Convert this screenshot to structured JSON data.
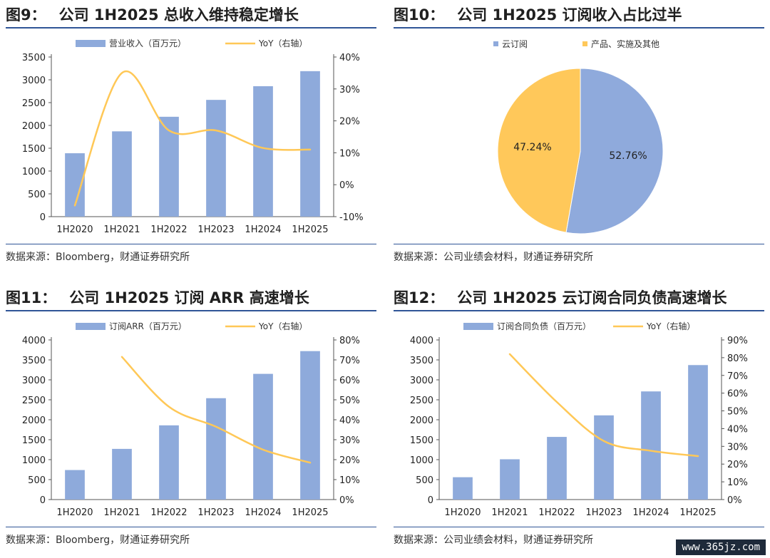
{
  "panels": [
    {
      "id": "fig9",
      "num": "图9：",
      "title": "公司 1H2025 总收入维持稳定增长",
      "source": "数据来源：Bloomberg，财通证券研究所"
    },
    {
      "id": "fig10",
      "num": "图10：",
      "title": "公司 1H2025 订阅收入占比过半",
      "source": "数据来源：公司业绩会材料，财通证券研究所"
    },
    {
      "id": "fig11",
      "num": "图11：",
      "title": "公司 1H2025 订阅 ARR 高速增长",
      "source": "数据来源：Bloomberg，财通证券研究所"
    },
    {
      "id": "fig12",
      "num": "图12：",
      "title": "公司 1H2025 云订阅合同负债高速增长",
      "source": "数据来源：公司业绩会材料，财通证券研究所"
    }
  ],
  "watermark": "www.365jz.com",
  "chart_data": [
    {
      "type": "bar",
      "categories": [
        "1H2020",
        "1H2021",
        "1H2022",
        "1H2023",
        "1H2024",
        "1H2025"
      ],
      "series": [
        {
          "name": "营业收入（百万元）",
          "type": "bar",
          "axis": "left",
          "values": [
            1390,
            1870,
            2190,
            2560,
            2860,
            3190
          ]
        },
        {
          "name": "YoY（右轴）",
          "type": "line",
          "axis": "right",
          "values": [
            -6.5,
            35.0,
            17.0,
            17.0,
            11.5,
            11.0
          ]
        }
      ],
      "ylim": [
        0,
        3500
      ],
      "yticks": [
        "0",
        "500",
        "1000",
        "1500",
        "2000",
        "2500",
        "3000",
        "3500"
      ],
      "y2lim": [
        -10,
        40
      ],
      "y2ticks": [
        "-10%",
        "0%",
        "10%",
        "20%",
        "30%",
        "40%"
      ],
      "legend": "top",
      "colors": {
        "bar": "#8eaadb",
        "line": "#ffc857"
      }
    },
    {
      "type": "pie",
      "labels": [
        "云订阅",
        "产品、实施及其他"
      ],
      "values": [
        52.76,
        47.24
      ],
      "value_labels": [
        "52.76%",
        "47.24%"
      ],
      "legend": "top-left",
      "colors": [
        "#8faadc",
        "#ffc85a"
      ]
    },
    {
      "type": "bar",
      "categories": [
        "1H2020",
        "1H2021",
        "1H2022",
        "1H2023",
        "1H2024",
        "1H2025"
      ],
      "series": [
        {
          "name": "订阅ARR（百万元）",
          "type": "bar",
          "axis": "left",
          "values": [
            740,
            1270,
            1860,
            2540,
            3150,
            3720
          ]
        },
        {
          "name": "YoY（右轴）",
          "type": "line",
          "axis": "right",
          "values": [
            null,
            71.5,
            46.5,
            36.5,
            25.0,
            18.5
          ]
        }
      ],
      "ylim": [
        0,
        4000
      ],
      "yticks": [
        "0",
        "500",
        "1000",
        "1500",
        "2000",
        "2500",
        "3000",
        "3500",
        "4000"
      ],
      "y2lim": [
        0,
        80
      ],
      "y2ticks": [
        "0%",
        "10%",
        "20%",
        "30%",
        "40%",
        "50%",
        "60%",
        "70%",
        "80%"
      ],
      "legend": "top",
      "colors": {
        "bar": "#8eaadb",
        "line": "#ffc857"
      }
    },
    {
      "type": "bar",
      "categories": [
        "1H2020",
        "1H2021",
        "1H2022",
        "1H2023",
        "1H2024",
        "1H2025"
      ],
      "series": [
        {
          "name": "订阅合同负债（百万元）",
          "type": "bar",
          "axis": "left",
          "values": [
            560,
            1010,
            1570,
            2110,
            2710,
            3370
          ]
        },
        {
          "name": "YoY（右轴）",
          "type": "line",
          "axis": "right",
          "values": [
            null,
            82.0,
            55.0,
            33.0,
            27.5,
            24.5
          ]
        }
      ],
      "ylim": [
        0,
        4000
      ],
      "yticks": [
        "0",
        "500",
        "1000",
        "1500",
        "2000",
        "2500",
        "3000",
        "3500",
        "4000"
      ],
      "y2lim": [
        0,
        90
      ],
      "y2ticks": [
        "0%",
        "10%",
        "20%",
        "30%",
        "40%",
        "50%",
        "60%",
        "70%",
        "80%",
        "90%"
      ],
      "legend": "top",
      "colors": {
        "bar": "#8eaadb",
        "line": "#ffc857"
      }
    }
  ]
}
